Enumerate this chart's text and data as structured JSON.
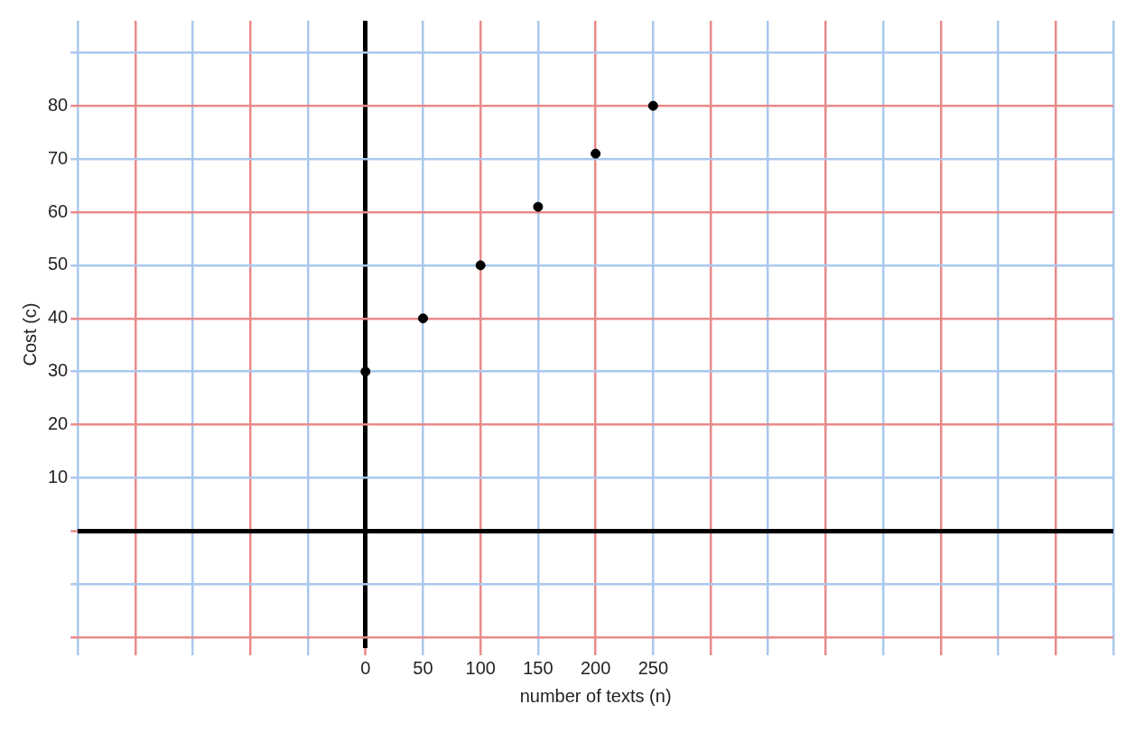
{
  "chart_data": {
    "type": "scatter",
    "xlabel": "number of texts (n)",
    "ylabel": "Cost (c)",
    "x": [
      0,
      50,
      100,
      150,
      200,
      250
    ],
    "series": [
      {
        "color": "#000000",
        "values": [
          30,
          40,
          50,
          61,
          71,
          80
        ]
      }
    ],
    "xlim": [
      -250,
      650
    ],
    "ylim": [
      -22,
      96
    ],
    "xticks": [
      {
        "value": -250,
        "label": null
      },
      {
        "value": -200,
        "label": null
      },
      {
        "value": -150,
        "label": null
      },
      {
        "value": -100,
        "label": null
      },
      {
        "value": -50,
        "label": null
      },
      0,
      50,
      100,
      150,
      200,
      250,
      {
        "value": 300,
        "label": null
      },
      {
        "value": 350,
        "label": null
      },
      {
        "value": 400,
        "label": null
      },
      {
        "value": 450,
        "label": null
      },
      {
        "value": 500,
        "label": null
      },
      {
        "value": 550,
        "label": null
      },
      {
        "value": 600,
        "label": null
      },
      {
        "value": 650,
        "label": null
      }
    ],
    "yticks": [
      {
        "value": -20,
        "label": null
      },
      {
        "value": -10,
        "label": null
      },
      {
        "value": 0,
        "label": null
      },
      10,
      20,
      30,
      40,
      50,
      60,
      70,
      80,
      {
        "value": 90,
        "label": null
      }
    ],
    "grid": true,
    "legend": false,
    "marker": "circle"
  }
}
